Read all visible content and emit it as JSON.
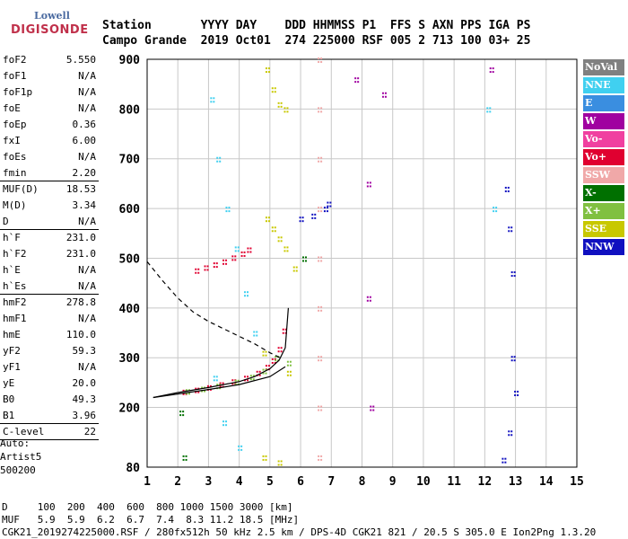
{
  "logo": {
    "line1": "Lowell",
    "line2": "DIGISONDE"
  },
  "header": {
    "row1": "Station       YYYY DAY    DDD HHMMSS P1  FFS S AXN PPS IGA PS",
    "row2": "Campo Grande  2019 Oct01  274 225000 RSF 005 2 713 100 03+ 25"
  },
  "params": [
    {
      "k": "foF2",
      "v": "5.550"
    },
    {
      "k": "foF1",
      "v": "N/A"
    },
    {
      "k": "foF1p",
      "v": "N/A"
    },
    {
      "k": "foE",
      "v": "N/A"
    },
    {
      "k": "foEp",
      "v": "0.36"
    },
    {
      "k": "fxI",
      "v": "6.00"
    },
    {
      "k": "foEs",
      "v": "N/A"
    },
    {
      "k": "fmin",
      "v": "2.20"
    },
    {
      "k": "MUF(D)",
      "v": "18.53"
    },
    {
      "k": "M(D)",
      "v": "3.34"
    },
    {
      "k": "D",
      "v": "N/A"
    },
    {
      "k": "h`F",
      "v": "231.0"
    },
    {
      "k": "h`F2",
      "v": "231.0"
    },
    {
      "k": "h`E",
      "v": "N/A"
    },
    {
      "k": "h`Es",
      "v": "N/A"
    },
    {
      "k": "hmF2",
      "v": "278.8"
    },
    {
      "k": "hmF1",
      "v": "N/A"
    },
    {
      "k": "hmE",
      "v": "110.0"
    },
    {
      "k": "yF2",
      "v": "59.3"
    },
    {
      "k": "yF1",
      "v": "N/A"
    },
    {
      "k": "yE",
      "v": "20.0"
    },
    {
      "k": "B0",
      "v": "49.3"
    },
    {
      "k": "B1",
      "v": "3.96"
    },
    {
      "k": "C-level",
      "v": "22"
    }
  ],
  "auto": {
    "l1": "Auto:",
    "l2": "Artist5",
    "l3": "500200"
  },
  "footer": {
    "d": "D     100  200  400  600  800 1000 1500 3000 [km]",
    "muf": "MUF   5.9  5.9  6.2  6.7  7.4  8.3 11.2 18.5 [MHz]",
    "file": "CGK21_2019274225000.RSF / 280fx512h 50 kHz 2.5 km / DPS-4D CGK21 821 / 20.5 S 305.0 E Ion2Png 1.3.20"
  },
  "legend": [
    {
      "label": "NoVal",
      "color": "#808080"
    },
    {
      "label": "NNE",
      "color": "#40d0f0"
    },
    {
      "label": "E",
      "color": "#3a8ee0"
    },
    {
      "label": "W",
      "color": "#a000a0"
    },
    {
      "label": "Vo-",
      "color": "#f040a0"
    },
    {
      "label": "Vo+",
      "color": "#e00030"
    },
    {
      "label": "SSW",
      "color": "#f0a8a8"
    },
    {
      "label": "X-",
      "color": "#007000"
    },
    {
      "label": "X+",
      "color": "#80c040"
    },
    {
      "label": "SSE",
      "color": "#c8c800"
    },
    {
      "label": "NNW",
      "color": "#1010c0"
    }
  ],
  "chart_data": {
    "type": "scatter",
    "title": "",
    "xlabel": "",
    "ylabel": "",
    "xlim": [
      1,
      15
    ],
    "ylim": [
      80,
      900
    ],
    "x_ticks": [
      1,
      2,
      3,
      4,
      5,
      6,
      7,
      8,
      9,
      10,
      11,
      12,
      13,
      14,
      15
    ],
    "y_ticks": [
      80,
      200,
      300,
      400,
      500,
      600,
      700,
      800,
      900
    ],
    "series": [
      {
        "color": "#e00030",
        "points": [
          [
            2.2,
            232
          ],
          [
            2.6,
            236
          ],
          [
            3.0,
            241
          ],
          [
            3.4,
            247
          ],
          [
            3.8,
            253
          ],
          [
            4.2,
            260
          ],
          [
            4.6,
            270
          ],
          [
            4.9,
            282
          ],
          [
            5.1,
            295
          ],
          [
            5.3,
            318
          ],
          [
            5.45,
            355
          ]
        ]
      },
      {
        "color": "#80c040",
        "points": [
          [
            2.3,
            233
          ],
          [
            2.8,
            238
          ],
          [
            3.3,
            244
          ],
          [
            3.9,
            252
          ],
          [
            4.4,
            262
          ],
          [
            4.8,
            274
          ],
          [
            5.2,
            300
          ],
          [
            5.6,
            290
          ]
        ]
      },
      {
        "color": "#e00030",
        "points": [
          [
            2.6,
            476
          ],
          [
            2.9,
            482
          ],
          [
            3.2,
            488
          ],
          [
            3.5,
            494
          ],
          [
            3.8,
            502
          ],
          [
            4.1,
            510
          ],
          [
            4.3,
            518
          ]
        ]
      },
      {
        "color": "#1010c0",
        "points": [
          [
            6.0,
            580
          ],
          [
            6.4,
            586
          ],
          [
            6.8,
            600
          ],
          [
            6.9,
            610
          ],
          [
            12.7,
            640
          ],
          [
            12.8,
            560
          ],
          [
            12.9,
            470
          ],
          [
            12.9,
            300
          ],
          [
            13.0,
            230
          ],
          [
            12.8,
            150
          ],
          [
            12.6,
            95
          ]
        ]
      },
      {
        "color": "#c8c800",
        "points": [
          [
            4.9,
            880
          ],
          [
            5.1,
            840
          ],
          [
            5.3,
            810
          ],
          [
            5.5,
            800
          ],
          [
            4.9,
            580
          ],
          [
            5.1,
            560
          ],
          [
            5.3,
            540
          ],
          [
            5.5,
            520
          ],
          [
            5.8,
            480
          ],
          [
            4.8,
            310
          ],
          [
            5.6,
            270
          ],
          [
            4.8,
            100
          ],
          [
            5.3,
            90
          ]
        ]
      },
      {
        "color": "#40d0f0",
        "points": [
          [
            3.1,
            820
          ],
          [
            3.3,
            700
          ],
          [
            3.6,
            600
          ],
          [
            3.9,
            520
          ],
          [
            4.2,
            430
          ],
          [
            4.5,
            350
          ],
          [
            3.2,
            260
          ],
          [
            3.5,
            170
          ],
          [
            4.0,
            120
          ],
          [
            12.1,
            800
          ],
          [
            12.3,
            600
          ]
        ]
      },
      {
        "color": "#f0a8a8",
        "points": [
          [
            6.6,
            900
          ],
          [
            6.6,
            800
          ],
          [
            6.6,
            700
          ],
          [
            6.6,
            600
          ],
          [
            6.6,
            500
          ],
          [
            6.6,
            400
          ],
          [
            6.6,
            300
          ],
          [
            6.6,
            200
          ],
          [
            6.6,
            100
          ]
        ]
      },
      {
        "color": "#a000a0",
        "points": [
          [
            7.8,
            860
          ],
          [
            8.7,
            830
          ],
          [
            8.2,
            650
          ],
          [
            8.2,
            420
          ],
          [
            8.3,
            200
          ],
          [
            12.2,
            880
          ]
        ]
      },
      {
        "color": "#007000",
        "points": [
          [
            2.1,
            190
          ],
          [
            2.2,
            100
          ],
          [
            6.1,
            500
          ]
        ]
      }
    ],
    "lines": [
      {
        "name": "trace",
        "points": [
          [
            1.2,
            220
          ],
          [
            2,
            230
          ],
          [
            3,
            240
          ],
          [
            4,
            252
          ],
          [
            4.5,
            262
          ],
          [
            5,
            278
          ],
          [
            5.3,
            295
          ],
          [
            5.5,
            320
          ],
          [
            5.6,
            400
          ]
        ]
      },
      {
        "name": "trace2",
        "points": [
          [
            1.2,
            220
          ],
          [
            3,
            236
          ],
          [
            4,
            246
          ],
          [
            5,
            262
          ],
          [
            5.5,
            282
          ]
        ]
      },
      {
        "name": "dashed",
        "dashed": true,
        "points": [
          [
            1,
            493
          ],
          [
            1.5,
            455
          ],
          [
            2,
            420
          ],
          [
            2.5,
            392
          ],
          [
            3,
            373
          ],
          [
            3.5,
            358
          ],
          [
            4,
            343
          ],
          [
            4.5,
            328
          ],
          [
            5,
            310
          ],
          [
            5.4,
            298
          ]
        ]
      }
    ]
  }
}
